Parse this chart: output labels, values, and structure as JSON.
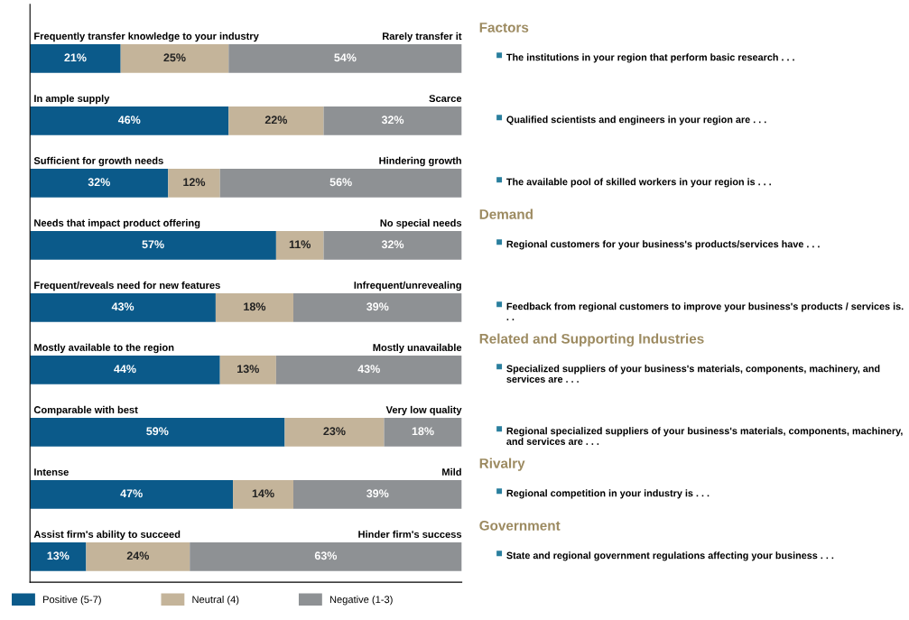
{
  "chart_data": [
    {
      "type": "bar",
      "orientation": "horizontal",
      "stacked": true,
      "categories": [
        "Frequently transfer knowledge to your industry",
        "In ample supply",
        "Sufficient for growth needs",
        "Needs that impact product offering",
        "Frequent/reveals need for new features",
        "Mostly available to the region",
        "Comparable with best",
        "Intense",
        "Assist firm's ability to succeed"
      ],
      "xlim": [
        0,
        100
      ],
      "annotations": [
        "Rarely transfer it",
        "Scarce",
        "Hindering growth",
        "No special needs",
        "Infrequent/unrevealing",
        "Mostly unavailable",
        "Very low quality",
        "Mild",
        "Hinder firm's success"
      ],
      "series": [
        {
          "name": "Positive (5-7)",
          "color": "#0b5a8a",
          "values": [
            21,
            46,
            32,
            57,
            43,
            44,
            59,
            47,
            13
          ],
          "value_labels": [
            "21%",
            "46%",
            "32%",
            "57%",
            "43%",
            "44%",
            "59%",
            "47%",
            "13%"
          ]
        },
        {
          "name": "Neutral (4)",
          "color": "#c4b49a",
          "values": [
            25,
            22,
            12,
            11,
            18,
            13,
            23,
            14,
            24
          ],
          "value_labels": [
            "25%",
            "22%",
            "12%",
            "11%",
            "18%",
            "13%",
            "23%",
            "14%",
            "24%"
          ]
        },
        {
          "name": "Negative (1-3)",
          "color": "#8e9194",
          "values": [
            54,
            32,
            56,
            32,
            39,
            43,
            18,
            39,
            63
          ],
          "value_labels": [
            "54%",
            "32%",
            "56%",
            "32%",
            "39%",
            "43%",
            "18%",
            "39%",
            "63%"
          ]
        }
      ],
      "legend": "bottom"
    },
    {
      "type": "other",
      "title": "Factors",
      "annotations": [
        "The institutions in your region that perform basic research . . .",
        "Qualified scientists and engineers in your region are . . .",
        "The available pool of skilled workers in your region is . . ."
      ]
    },
    {
      "type": "other",
      "title": "Demand",
      "annotations": [
        "Regional customers for your business's products/services have . . .",
        "Feedback from regional customers to improve your business's products / services is. . ."
      ]
    },
    {
      "type": "other",
      "title": "Related and Supporting Industries",
      "annotations": [
        "Specialized suppliers of your business's materials, components, machinery, and services are . . .",
        "Regional specialized suppliers of your business's materials, components, machinery, and services are . . ."
      ]
    },
    {
      "type": "other",
      "title": "Rivalry",
      "annotations": [
        "Regional competition in your industry is . . ."
      ]
    },
    {
      "type": "other",
      "title": "Government",
      "annotations": [
        "State and regional government regulations affecting your business . . ."
      ]
    }
  ]
}
